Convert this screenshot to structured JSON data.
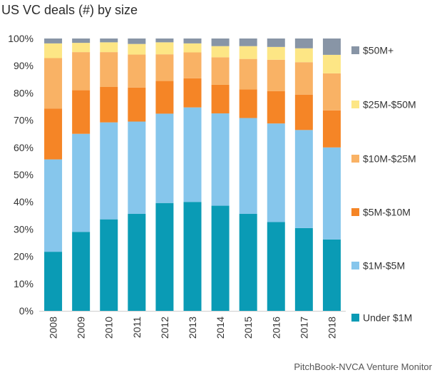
{
  "chart_data": {
    "type": "bar",
    "stacked": true,
    "title": "US VC deals (#) by size",
    "source": "PitchBook-NVCA Venture Monitor",
    "xlabel": "",
    "ylabel": "",
    "ylim": [
      0,
      100
    ],
    "y_ticks": [
      "0%",
      "10%",
      "20%",
      "30%",
      "40%",
      "50%",
      "60%",
      "70%",
      "80%",
      "90%",
      "100%"
    ],
    "grid": false,
    "legend_position": "right",
    "categories": [
      "2008",
      "2009",
      "2010",
      "2011",
      "2012",
      "2013",
      "2014",
      "2015",
      "2016",
      "2017",
      "2018"
    ],
    "series": [
      {
        "name": "Under $1M",
        "color": "#0a9bb5",
        "values": [
          21.7,
          29.0,
          33.6,
          35.6,
          39.6,
          40.0,
          38.6,
          35.6,
          32.6,
          30.4,
          26.2
        ]
      },
      {
        "name": "$1M-$5M",
        "color": "#86c6ec",
        "values": [
          33.9,
          36.0,
          35.6,
          33.9,
          32.8,
          34.7,
          33.9,
          35.2,
          36.2,
          36.0,
          33.8
        ]
      },
      {
        "name": "$5M-$10M",
        "color": "#f58526",
        "values": [
          18.7,
          16.0,
          13.0,
          12.5,
          12.0,
          10.7,
          10.5,
          10.5,
          11.9,
          13.0,
          13.6
        ]
      },
      {
        "name": "$10M-$25M",
        "color": "#f9b265",
        "values": [
          18.5,
          14.0,
          12.8,
          12.1,
          9.8,
          9.5,
          10.1,
          11.2,
          11.5,
          11.9,
          13.6
        ]
      },
      {
        "name": " $25M-$50M",
        "color": "#fde685",
        "values": [
          5.4,
          3.4,
          3.6,
          3.9,
          4.4,
          3.3,
          4.1,
          4.7,
          4.7,
          5.1,
          6.8
        ]
      },
      {
        "name": "$50M+",
        "color": "#8895a6",
        "values": [
          1.8,
          1.6,
          1.4,
          2.0,
          1.4,
          1.8,
          2.8,
          2.8,
          3.1,
          3.6,
          6.0
        ]
      }
    ]
  }
}
